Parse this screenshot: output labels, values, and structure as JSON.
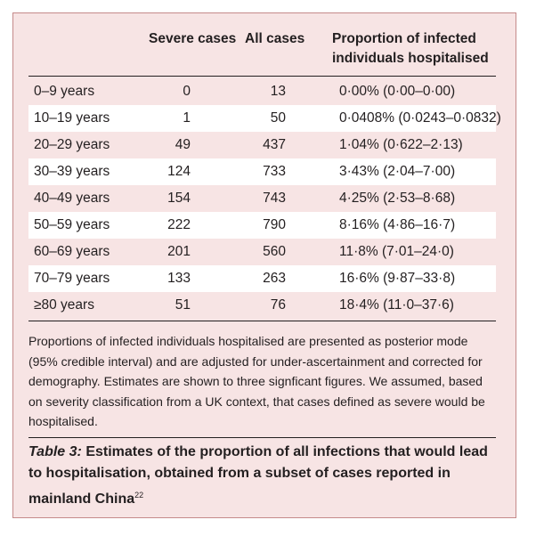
{
  "table": {
    "headers": {
      "severe": "Severe cases",
      "all": "All cases",
      "proportion": "Proportion of infected individuals hospitalised"
    },
    "rows": [
      {
        "age": "0–9 years",
        "severe": "0",
        "all": "13",
        "proportion": "0·00% (0·00–0·00)"
      },
      {
        "age": "10–19 years",
        "severe": "1",
        "all": "50",
        "proportion": "0·0408% (0·0243–0·0832)"
      },
      {
        "age": "20–29 years",
        "severe": "49",
        "all": "437",
        "proportion": "1·04% (0·622–2·13)"
      },
      {
        "age": "30–39 years",
        "severe": "124",
        "all": "733",
        "proportion": "3·43% (2·04–7·00)"
      },
      {
        "age": "40–49 years",
        "severe": "154",
        "all": "743",
        "proportion": "4·25% (2·53–8·68)"
      },
      {
        "age": "50–59 years",
        "severe": "222",
        "all": "790",
        "proportion": "8·16% (4·86–16·7)"
      },
      {
        "age": "60–69 years",
        "severe": "201",
        "all": "560",
        "proportion": "11·8% (7·01–24·0)"
      },
      {
        "age": "70–79 years",
        "severe": "133",
        "all": "263",
        "proportion": "16·6% (9·87–33·8)"
      },
      {
        "age": "≥80 years",
        "severe": "51",
        "all": "76",
        "proportion": "18·4% (11·0–37·6)"
      }
    ]
  },
  "footnote": "Proportions of infected individuals hospitalised are presented as posterior mode (95% credible interval) and are adjusted for under-ascertainment and corrected for demography. Estimates are shown to three signficant figures. We assumed, based on severity classification from a UK context, that cases defined as severe would be hospitalised.",
  "caption": {
    "label": "Table 3:",
    "text": " Estimates of the proportion of all infections that would lead to hospitalisation, obtained from a subset of cases reported in mainland China",
    "ref": "22"
  },
  "colors": {
    "background": "#f7e4e4",
    "border": "#c58a8a",
    "row_alt": "#ffffff",
    "text": "#231f20"
  }
}
